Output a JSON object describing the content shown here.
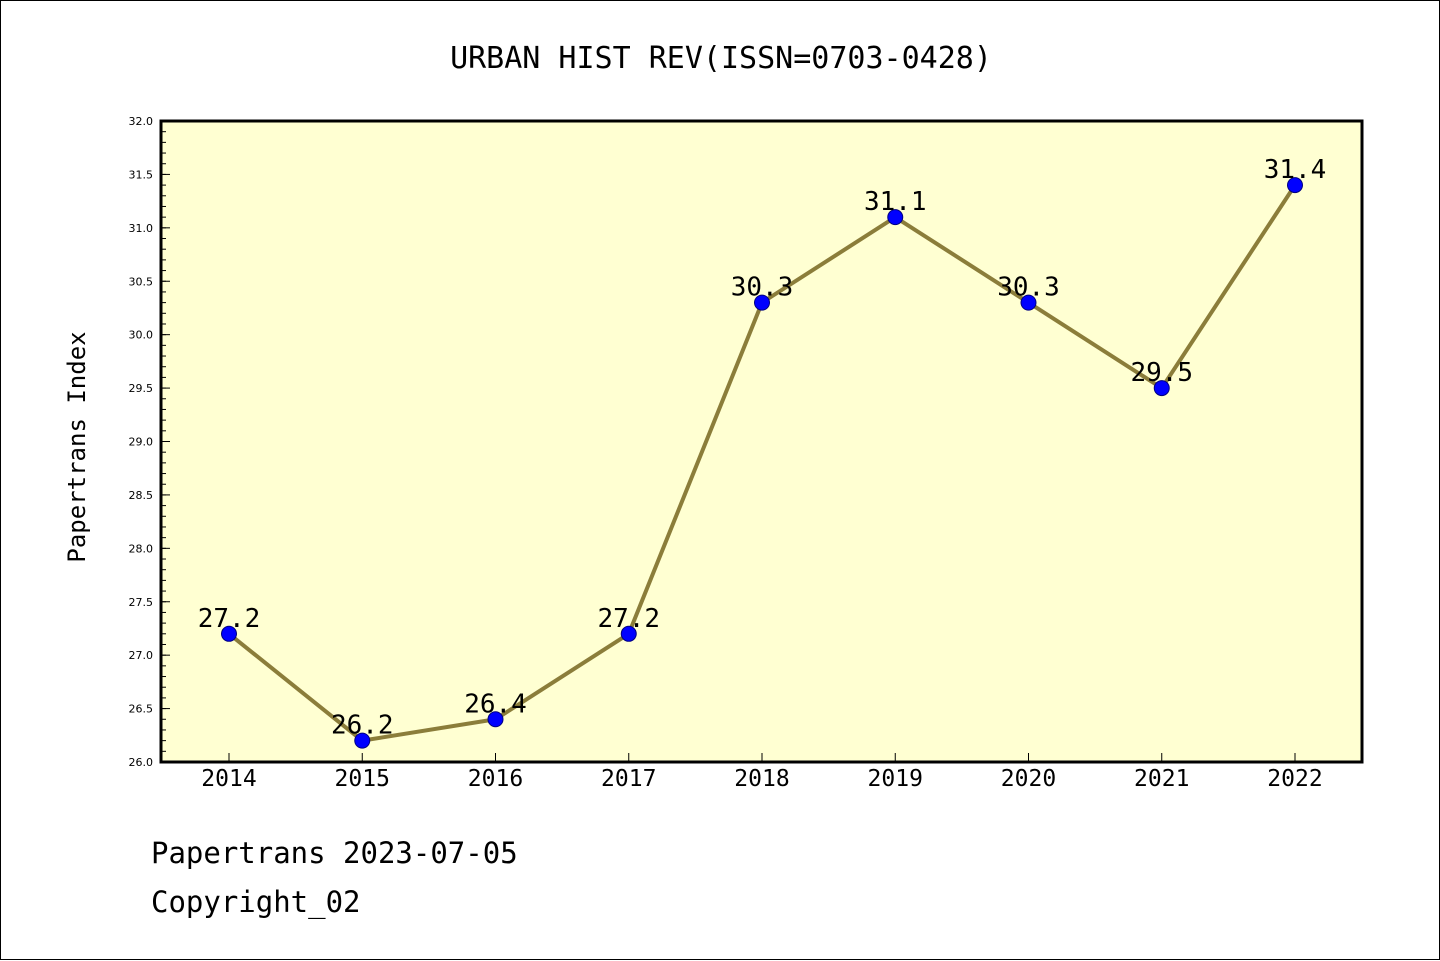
{
  "chart_data": {
    "type": "line",
    "title": "URBAN HIST REV(ISSN=0703-0428)",
    "xlabel": "",
    "ylabel": "Papertrans Index",
    "categories": [
      "2014",
      "2015",
      "2016",
      "2017",
      "2018",
      "2019",
      "2020",
      "2021",
      "2022"
    ],
    "values": [
      27.2,
      26.2,
      26.4,
      27.2,
      30.3,
      31.1,
      30.3,
      29.5,
      31.4
    ],
    "data_labels": [
      "27.2",
      "26.2",
      "26.4",
      "27.2",
      "30.3",
      "31.1",
      "30.3",
      "29.5",
      "31.4"
    ],
    "ylim": [
      26.0,
      32.0
    ],
    "yticks": [
      "26.0",
      "26.5",
      "27.0",
      "27.5",
      "28.0",
      "28.5",
      "29.0",
      "29.5",
      "30.0",
      "30.5",
      "31.0",
      "31.5",
      "32.0"
    ],
    "grid": false,
    "legend": "none",
    "colors": {
      "plot_background": "#ffffd2",
      "line": "#8b7d3a",
      "marker": "#0000ff"
    }
  },
  "footer": {
    "line1": "Papertrans 2023-07-05",
    "line2": "Copyright_02"
  }
}
